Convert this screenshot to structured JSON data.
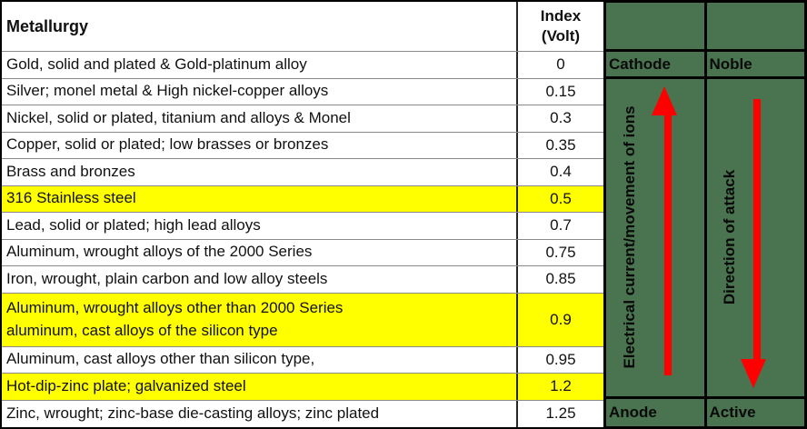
{
  "table": {
    "header": {
      "metallurgy": "Metallurgy",
      "index_line1": "Index",
      "index_line2": "(Volt)"
    },
    "rows": [
      {
        "name": "Gold, solid and plated & Gold-platinum alloy",
        "index": "0",
        "highlight": false
      },
      {
        "name": "Silver; monel metal & High nickel-copper alloys",
        "index": "0.15",
        "highlight": false
      },
      {
        "name": "Nickel, solid or plated, titanium and alloys & Monel",
        "index": "0.3",
        "highlight": false
      },
      {
        "name": "Copper, solid or plated; low brasses or bronzes",
        "index": "0.35",
        "highlight": false
      },
      {
        "name": "Brass and bronzes",
        "index": "0.4",
        "highlight": false
      },
      {
        "name": "316 Stainless steel",
        "index": "0.5",
        "highlight": true
      },
      {
        "name": "Lead, solid or plated; high lead alloys",
        "index": "0.7",
        "highlight": false
      },
      {
        "name": "Aluminum, wrought alloys of the 2000 Series",
        "index": "0.75",
        "highlight": false
      },
      {
        "name": "Iron, wrought, plain carbon and low alloy steels",
        "index": "0.85",
        "highlight": false
      },
      {
        "name": "Aluminum, wrought alloys other than 2000 Series\naluminum, cast alloys of the silicon type",
        "index": "0.9",
        "highlight": true
      },
      {
        "name": "Aluminum, cast alloys other than silicon type,",
        "index": "0.95",
        "highlight": false
      },
      {
        "name": "Hot-dip-zinc plate; galvanized steel",
        "index": "1.2",
        "highlight": true
      },
      {
        "name": "Zinc, wrought; zinc-base die-casting alloys; zinc plated",
        "index": "1.25",
        "highlight": false
      }
    ]
  },
  "panel": {
    "cathode_label": "Cathode",
    "noble_label": "Noble",
    "anode_label": "Anode",
    "active_label": "Active",
    "ions_axis_label": "Electrical current/movement of ions",
    "attack_axis_label": "Direction of attack",
    "ions_arrow_direction": "up",
    "attack_arrow_direction": "down"
  },
  "colors": {
    "highlight_yellow": "#ffff00",
    "panel_green": "#4a7350",
    "arrow_red": "#ff0000"
  }
}
